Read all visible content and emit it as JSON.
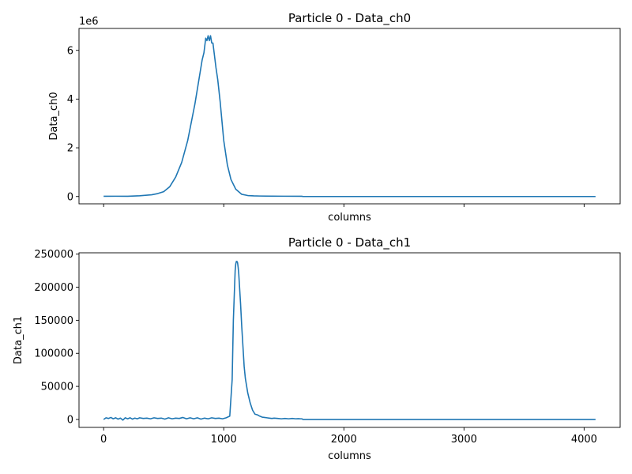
{
  "chart_data": [
    {
      "type": "line",
      "title": "Particle 0 - Data_ch0",
      "xlabel": "columns",
      "ylabel": "Data_ch0",
      "y_offset_text": "1e6",
      "xlim": [
        -205,
        4300
      ],
      "ylim": [
        -300000,
        6900000
      ],
      "x_ticks": [
        0,
        1000,
        2000,
        3000,
        4000
      ],
      "x_tick_labels_visible": false,
      "y_ticks": [
        0,
        2000000,
        4000000,
        6000000
      ],
      "y_tick_labels": [
        "0",
        "2",
        "4",
        "6"
      ],
      "series": [
        {
          "color": "#1f77b4",
          "x": [
            0,
            100,
            200,
            300,
            400,
            450,
            500,
            550,
            600,
            650,
            700,
            740,
            760,
            780,
            800,
            820,
            835,
            850,
            860,
            870,
            880,
            890,
            900,
            910,
            920,
            935,
            950,
            970,
            1000,
            1030,
            1060,
            1100,
            1150,
            1200,
            1250,
            1300,
            1400,
            1500,
            1650,
            1660,
            2000,
            3000,
            4095
          ],
          "y": [
            10000,
            12000,
            10000,
            30000,
            70000,
            120000,
            200000,
            400000,
            800000,
            1400000,
            2300000,
            3300000,
            3800000,
            4400000,
            5000000,
            5600000,
            5900000,
            6500000,
            6400000,
            6600000,
            6400000,
            6600000,
            6300000,
            6300000,
            5900000,
            5300000,
            4800000,
            3900000,
            2300000,
            1300000,
            700000,
            300000,
            90000,
            40000,
            25000,
            20000,
            15000,
            12000,
            10000,
            0,
            0,
            0,
            0
          ]
        }
      ]
    },
    {
      "type": "line",
      "title": "Particle 0 - Data_ch1",
      "xlabel": "columns",
      "ylabel": "Data_ch1",
      "xlim": [
        -205,
        4300
      ],
      "ylim": [
        -12000,
        252000
      ],
      "x_ticks": [
        0,
        1000,
        2000,
        3000,
        4000
      ],
      "x_tick_labels": [
        "0",
        "1000",
        "2000",
        "3000",
        "4000"
      ],
      "y_ticks": [
        0,
        50000,
        100000,
        150000,
        200000,
        250000
      ],
      "y_tick_labels": [
        "0",
        "50000",
        "100000",
        "150000",
        "200000",
        "250000"
      ],
      "series": [
        {
          "color": "#1f77b4",
          "x": [
            0,
            20,
            40,
            60,
            80,
            100,
            120,
            140,
            160,
            180,
            200,
            220,
            240,
            260,
            280,
            300,
            330,
            360,
            390,
            420,
            450,
            480,
            510,
            540,
            570,
            600,
            630,
            660,
            690,
            720,
            750,
            780,
            810,
            840,
            870,
            900,
            930,
            960,
            990,
            1020,
            1050,
            1070,
            1080,
            1090,
            1095,
            1100,
            1105,
            1110,
            1115,
            1120,
            1125,
            1130,
            1140,
            1150,
            1160,
            1170,
            1180,
            1200,
            1220,
            1240,
            1260,
            1280,
            1300,
            1320,
            1340,
            1360,
            1380,
            1400,
            1420,
            1450,
            1480,
            1510,
            1540,
            1570,
            1600,
            1620,
            1640,
            1650,
            1660,
            2000,
            3000,
            4095
          ],
          "y": [
            0,
            2500,
            1500,
            3000,
            1000,
            2500,
            500,
            2000,
            -1000,
            2500,
            1000,
            2500,
            500,
            2000,
            1000,
            2500,
            1500,
            2000,
            1000,
            2500,
            1500,
            2000,
            500,
            2500,
            1000,
            2000,
            1500,
            3000,
            1000,
            2500,
            1000,
            2500,
            500,
            2000,
            1000,
            2500,
            1500,
            2000,
            1000,
            2500,
            5000,
            60000,
            150000,
            200000,
            225000,
            235000,
            239000,
            239000,
            237000,
            230000,
            220000,
            205000,
            175000,
            140000,
            110000,
            80000,
            62000,
            40000,
            25000,
            14000,
            8000,
            7000,
            5000,
            3500,
            3000,
            2500,
            2000,
            1500,
            2000,
            1500,
            1000,
            1500,
            1000,
            1500,
            1000,
            1200,
            1000,
            1000,
            0,
            0,
            0,
            0
          ]
        }
      ]
    }
  ]
}
